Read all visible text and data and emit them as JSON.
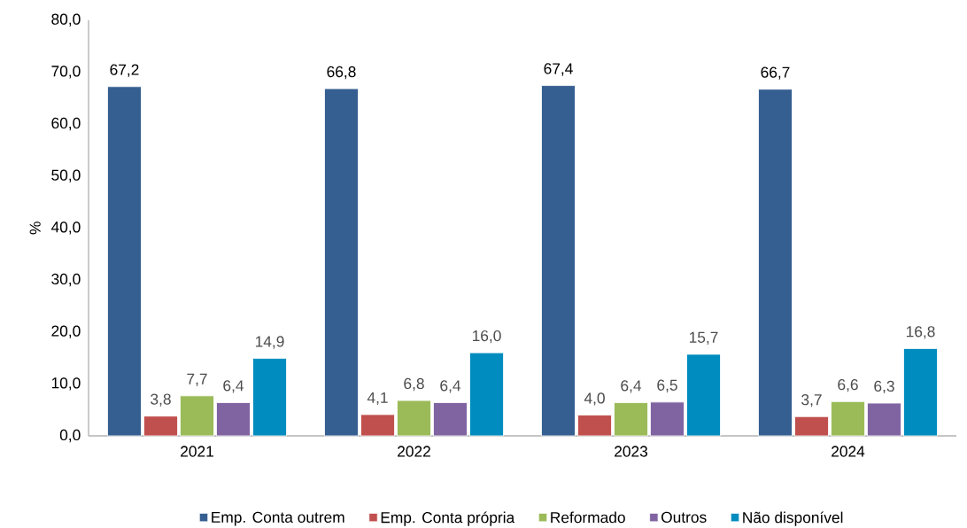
{
  "chart_data": {
    "type": "bar",
    "ylabel": "%",
    "categories": [
      "2021",
      "2022",
      "2023",
      "2024"
    ],
    "series": [
      {
        "name": "Emp. Conta outrem",
        "color": "#365f91",
        "values": [
          67.2,
          66.8,
          67.4,
          66.7
        ],
        "value_labels": [
          "67,2",
          "66,8",
          "67,4",
          "66,7"
        ]
      },
      {
        "name": "Emp. Conta própria",
        "color": "#c0504d",
        "values": [
          3.8,
          4.1,
          4.0,
          3.7
        ],
        "value_labels": [
          "3,8",
          "4,1",
          "4,0",
          "3,7"
        ]
      },
      {
        "name": "Reformado",
        "color": "#9bbb59",
        "values": [
          7.7,
          6.8,
          6.4,
          6.6
        ],
        "value_labels": [
          "7,7",
          "6,8",
          "6,4",
          "6,6"
        ]
      },
      {
        "name": "Outros",
        "color": "#8064a2",
        "values": [
          6.4,
          6.4,
          6.5,
          6.3
        ],
        "value_labels": [
          "6,4",
          "6,4",
          "6,5",
          "6,3"
        ]
      },
      {
        "name": "Não disponível",
        "color": "#008cbe",
        "values": [
          14.9,
          16.0,
          15.7,
          16.8
        ],
        "value_labels": [
          "14,9",
          "16,0",
          "15,7",
          "16,8"
        ]
      }
    ],
    "ylim": [
      0,
      80
    ],
    "yticks": [
      {
        "value": 0,
        "label": "0,0"
      },
      {
        "value": 10,
        "label": "10,0"
      },
      {
        "value": 20,
        "label": "20,0"
      },
      {
        "value": 30,
        "label": "30,0"
      },
      {
        "value": 40,
        "label": "40,0"
      },
      {
        "value": 50,
        "label": "50,0"
      },
      {
        "value": 60,
        "label": "60,0"
      },
      {
        "value": 70,
        "label": "70,0"
      },
      {
        "value": 80,
        "label": "80,0"
      }
    ],
    "legend": "bottom",
    "grid": false
  }
}
